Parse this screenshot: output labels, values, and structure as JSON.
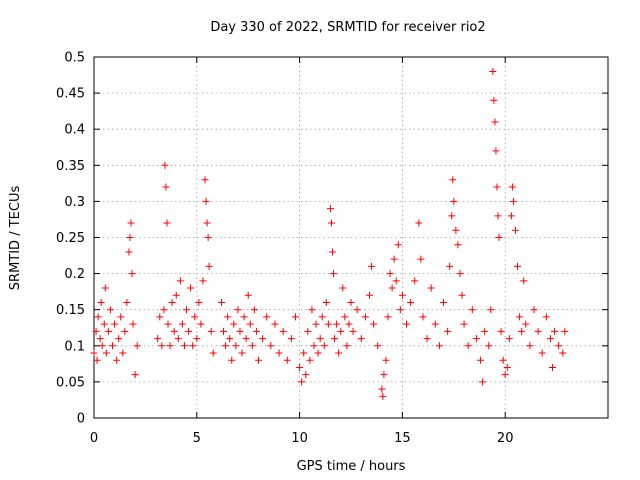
{
  "chart_data": {
    "type": "scatter",
    "title": "Day 330 of 2022, SRMTID for receiver rio2",
    "xlabel": "GPS time / hours",
    "ylabel": "SRMTID / TECUs",
    "xlim": [
      0,
      25
    ],
    "ylim": [
      0,
      0.5
    ],
    "x_ticks": [
      "0",
      "5",
      "10",
      "15",
      "20"
    ],
    "y_ticks": [
      "0",
      "0.05",
      "0.1",
      "0.15",
      "0.2",
      "0.25",
      "0.3",
      "0.35",
      "0.4",
      "0.45",
      "0.5"
    ],
    "grid": true,
    "marker": "+",
    "color": "#ff0000",
    "series": [
      {
        "points": [
          [
            0.0,
            0.09
          ],
          [
            0.1,
            0.12
          ],
          [
            0.15,
            0.08
          ],
          [
            0.2,
            0.14
          ],
          [
            0.3,
            0.11
          ],
          [
            0.35,
            0.16
          ],
          [
            0.4,
            0.1
          ],
          [
            0.5,
            0.13
          ],
          [
            0.55,
            0.18
          ],
          [
            0.6,
            0.09
          ],
          [
            0.7,
            0.12
          ],
          [
            0.8,
            0.15
          ],
          [
            0.9,
            0.1
          ],
          [
            1.0,
            0.13
          ],
          [
            1.1,
            0.08
          ],
          [
            1.2,
            0.11
          ],
          [
            1.3,
            0.14
          ],
          [
            1.4,
            0.09
          ],
          [
            1.5,
            0.12
          ],
          [
            1.6,
            0.16
          ],
          [
            1.7,
            0.23
          ],
          [
            1.75,
            0.25
          ],
          [
            1.8,
            0.27
          ],
          [
            1.85,
            0.2
          ],
          [
            1.9,
            0.13
          ],
          [
            2.0,
            0.06
          ],
          [
            2.1,
            0.1
          ],
          [
            3.1,
            0.11
          ],
          [
            3.2,
            0.14
          ],
          [
            3.3,
            0.1
          ],
          [
            3.4,
            0.15
          ],
          [
            3.45,
            0.35
          ],
          [
            3.5,
            0.32
          ],
          [
            3.55,
            0.27
          ],
          [
            3.6,
            0.13
          ],
          [
            3.7,
            0.1
          ],
          [
            3.8,
            0.16
          ],
          [
            3.9,
            0.12
          ],
          [
            4.0,
            0.17
          ],
          [
            4.1,
            0.11
          ],
          [
            4.2,
            0.19
          ],
          [
            4.3,
            0.13
          ],
          [
            4.4,
            0.1
          ],
          [
            4.5,
            0.15
          ],
          [
            4.6,
            0.12
          ],
          [
            4.7,
            0.18
          ],
          [
            4.8,
            0.1
          ],
          [
            4.9,
            0.14
          ],
          [
            5.0,
            0.11
          ],
          [
            5.1,
            0.16
          ],
          [
            5.2,
            0.13
          ],
          [
            5.3,
            0.19
          ],
          [
            5.4,
            0.33
          ],
          [
            5.45,
            0.3
          ],
          [
            5.5,
            0.27
          ],
          [
            5.55,
            0.25
          ],
          [
            5.6,
            0.21
          ],
          [
            5.7,
            0.12
          ],
          [
            5.8,
            0.09
          ],
          [
            6.2,
            0.16
          ],
          [
            6.3,
            0.12
          ],
          [
            6.4,
            0.1
          ],
          [
            6.5,
            0.14
          ],
          [
            6.6,
            0.11
          ],
          [
            6.7,
            0.08
          ],
          [
            6.8,
            0.13
          ],
          [
            6.9,
            0.1
          ],
          [
            7.0,
            0.15
          ],
          [
            7.1,
            0.12
          ],
          [
            7.2,
            0.09
          ],
          [
            7.3,
            0.14
          ],
          [
            7.4,
            0.11
          ],
          [
            7.5,
            0.17
          ],
          [
            7.6,
            0.13
          ],
          [
            7.7,
            0.1
          ],
          [
            7.8,
            0.15
          ],
          [
            7.9,
            0.12
          ],
          [
            8.0,
            0.08
          ],
          [
            8.2,
            0.11
          ],
          [
            8.4,
            0.14
          ],
          [
            8.6,
            0.1
          ],
          [
            8.8,
            0.13
          ],
          [
            9.0,
            0.09
          ],
          [
            9.2,
            0.12
          ],
          [
            9.4,
            0.08
          ],
          [
            9.6,
            0.11
          ],
          [
            9.8,
            0.14
          ],
          [
            10.0,
            0.07
          ],
          [
            10.1,
            0.05
          ],
          [
            10.2,
            0.09
          ],
          [
            10.3,
            0.06
          ],
          [
            10.4,
            0.12
          ],
          [
            10.5,
            0.08
          ],
          [
            10.6,
            0.15
          ],
          [
            10.7,
            0.1
          ],
          [
            10.8,
            0.13
          ],
          [
            10.9,
            0.09
          ],
          [
            11.0,
            0.11
          ],
          [
            11.1,
            0.14
          ],
          [
            11.2,
            0.1
          ],
          [
            11.3,
            0.16
          ],
          [
            11.4,
            0.13
          ],
          [
            11.5,
            0.29
          ],
          [
            11.55,
            0.27
          ],
          [
            11.6,
            0.23
          ],
          [
            11.65,
            0.2
          ],
          [
            11.7,
            0.11
          ],
          [
            11.8,
            0.13
          ],
          [
            11.9,
            0.09
          ],
          [
            12.0,
            0.12
          ],
          [
            12.1,
            0.18
          ],
          [
            12.2,
            0.14
          ],
          [
            12.3,
            0.1
          ],
          [
            12.4,
            0.13
          ],
          [
            12.5,
            0.16
          ],
          [
            12.6,
            0.12
          ],
          [
            12.8,
            0.15
          ],
          [
            13.0,
            0.11
          ],
          [
            13.2,
            0.14
          ],
          [
            13.4,
            0.17
          ],
          [
            13.5,
            0.21
          ],
          [
            13.6,
            0.13
          ],
          [
            13.8,
            0.1
          ],
          [
            14.0,
            0.04
          ],
          [
            14.05,
            0.03
          ],
          [
            14.1,
            0.06
          ],
          [
            14.2,
            0.08
          ],
          [
            14.3,
            0.14
          ],
          [
            14.4,
            0.2
          ],
          [
            14.5,
            0.18
          ],
          [
            14.6,
            0.22
          ],
          [
            14.7,
            0.19
          ],
          [
            14.8,
            0.24
          ],
          [
            14.9,
            0.15
          ],
          [
            15.0,
            0.17
          ],
          [
            15.2,
            0.13
          ],
          [
            15.4,
            0.16
          ],
          [
            15.6,
            0.19
          ],
          [
            15.8,
            0.27
          ],
          [
            15.9,
            0.22
          ],
          [
            16.0,
            0.14
          ],
          [
            16.2,
            0.11
          ],
          [
            16.4,
            0.18
          ],
          [
            16.6,
            0.13
          ],
          [
            16.8,
            0.1
          ],
          [
            17.0,
            0.16
          ],
          [
            17.2,
            0.12
          ],
          [
            17.3,
            0.21
          ],
          [
            17.4,
            0.28
          ],
          [
            17.45,
            0.33
          ],
          [
            17.5,
            0.3
          ],
          [
            17.6,
            0.26
          ],
          [
            17.7,
            0.24
          ],
          [
            17.8,
            0.2
          ],
          [
            17.9,
            0.17
          ],
          [
            18.0,
            0.13
          ],
          [
            18.2,
            0.1
          ],
          [
            18.4,
            0.15
          ],
          [
            18.6,
            0.11
          ],
          [
            18.8,
            0.08
          ],
          [
            18.9,
            0.05
          ],
          [
            19.0,
            0.12
          ],
          [
            19.2,
            0.1
          ],
          [
            19.3,
            0.15
          ],
          [
            19.4,
            0.48
          ],
          [
            19.45,
            0.44
          ],
          [
            19.5,
            0.41
          ],
          [
            19.55,
            0.37
          ],
          [
            19.6,
            0.32
          ],
          [
            19.65,
            0.28
          ],
          [
            19.7,
            0.25
          ],
          [
            19.8,
            0.12
          ],
          [
            19.9,
            0.08
          ],
          [
            20.0,
            0.06
          ],
          [
            20.1,
            0.07
          ],
          [
            20.2,
            0.11
          ],
          [
            20.3,
            0.28
          ],
          [
            20.35,
            0.32
          ],
          [
            20.4,
            0.3
          ],
          [
            20.5,
            0.26
          ],
          [
            20.6,
            0.21
          ],
          [
            20.7,
            0.14
          ],
          [
            20.8,
            0.12
          ],
          [
            20.9,
            0.19
          ],
          [
            21.0,
            0.13
          ],
          [
            21.2,
            0.1
          ],
          [
            21.4,
            0.15
          ],
          [
            21.6,
            0.12
          ],
          [
            21.8,
            0.09
          ],
          [
            22.0,
            0.14
          ],
          [
            22.2,
            0.11
          ],
          [
            22.3,
            0.07
          ],
          [
            22.4,
            0.12
          ],
          [
            22.6,
            0.1
          ],
          [
            22.8,
            0.09
          ],
          [
            22.9,
            0.12
          ]
        ]
      }
    ]
  }
}
